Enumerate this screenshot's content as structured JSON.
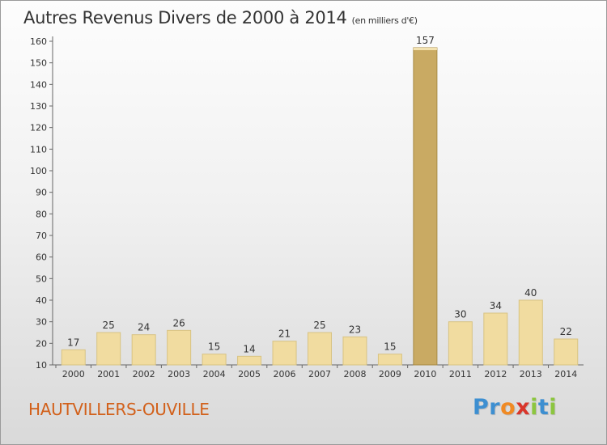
{
  "title": "Autres Revenus Divers de 2000 à 2014",
  "unit_note": "(en milliers d'€)",
  "location": "HAUTVILLERS-OUVILLE",
  "logo_letters": [
    "P",
    "r",
    "o",
    "x",
    "i",
    "t",
    "i"
  ],
  "colors": {
    "bar_light": "#f1dca0",
    "bar_dark": "#c9aa63",
    "location": "#d2601a",
    "logo": [
      "#3d8fd1",
      "#3d8fd1",
      "#f08a24",
      "#d9362b",
      "#8cc63f",
      "#3d8fd1",
      "#8cc63f"
    ]
  },
  "chart_data": {
    "type": "bar",
    "title": "Autres Revenus Divers de 2000 à 2014",
    "xlabel": "",
    "ylabel": "",
    "categories": [
      "2000",
      "2001",
      "2002",
      "2003",
      "2004",
      "2005",
      "2006",
      "2007",
      "2008",
      "2009",
      "2010",
      "2011",
      "2012",
      "2013",
      "2014"
    ],
    "values": [
      17,
      25,
      24,
      26,
      15,
      14,
      21,
      25,
      23,
      15,
      157,
      30,
      34,
      40,
      22
    ],
    "ylim": [
      10,
      160
    ],
    "yticks": [
      10,
      20,
      30,
      40,
      50,
      60,
      70,
      80,
      90,
      100,
      110,
      120,
      130,
      140,
      150,
      160
    ],
    "highlight": "2010",
    "grid": false,
    "legend": "none"
  }
}
